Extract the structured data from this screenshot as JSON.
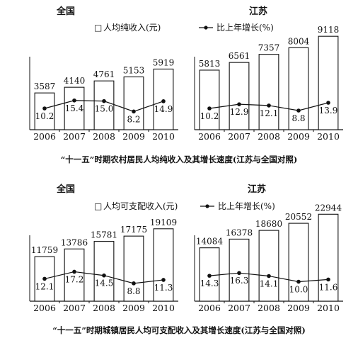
{
  "panels": [
    {
      "region": "全国",
      "legend_text": "人均纯收入(元)",
      "legend_prefix": "□",
      "rate_legend_text": "比上年增长(%)",
      "chart_data": {
        "type": "bar",
        "categories": [
          "2006",
          "2007",
          "2008",
          "2009",
          "2010"
        ],
        "series": [
          {
            "name": "人均纯收入(元)",
            "type": "bar",
            "values": [
              3587,
              4140,
              4761,
              5153,
              5919
            ]
          },
          {
            "name": "比上年增长(%)",
            "type": "line",
            "values": [
              10.2,
              15.4,
              15.0,
              8.2,
              14.9
            ]
          }
        ],
        "ylim": [
          0,
          9200
        ],
        "rate_ylim": [
          0,
          30
        ],
        "grid": false
      }
    },
    {
      "region": "江苏",
      "legend_text": "",
      "legend_prefix": "",
      "rate_legend_text": "比上年增长(%)",
      "chart_data": {
        "type": "bar",
        "categories": [
          "2006",
          "2007",
          "2008",
          "2009",
          "2010"
        ],
        "series": [
          {
            "name": "人均纯收入(元)",
            "type": "bar",
            "values": [
              5813,
              6561,
              7357,
              8004,
              9118
            ]
          },
          {
            "name": "比上年增长(%)",
            "type": "line",
            "values": [
              10.2,
              12.9,
              12.1,
              8.8,
              13.9
            ]
          }
        ],
        "ylim": [
          0,
          9200
        ],
        "rate_ylim": [
          0,
          30
        ],
        "grid": false
      }
    },
    {
      "region": "全国",
      "legend_text": "人均可支配收入(元)",
      "legend_prefix": "□",
      "rate_legend_text": "比上年增长(%)",
      "chart_data": {
        "type": "bar",
        "categories": [
          "2006",
          "2007",
          "2008",
          "2009",
          "2010"
        ],
        "series": [
          {
            "name": "人均可支配收入(元)",
            "type": "bar",
            "values": [
              11759,
              13786,
              15781,
              17175,
              19109
            ]
          },
          {
            "name": "比上年增长(%)",
            "type": "line",
            "values": [
              12.1,
              17.2,
              14.5,
              8.8,
              11.3
            ]
          }
        ],
        "ylim": [
          0,
          23000
        ],
        "rate_ylim": [
          0,
          30
        ],
        "grid": false
      }
    },
    {
      "region": "江苏",
      "legend_text": "",
      "legend_prefix": "",
      "rate_legend_text": "比上年增长(%)",
      "chart_data": {
        "type": "bar",
        "categories": [
          "2006",
          "2007",
          "2008",
          "2009",
          "2010"
        ],
        "series": [
          {
            "name": "人均可支配收入(元)",
            "type": "bar",
            "values": [
              14084,
              16378,
              18680,
              20552,
              22944
            ]
          },
          {
            "name": "比上年增长(%)",
            "type": "line",
            "values": [
              14.3,
              16.3,
              14.1,
              10.0,
              11.6
            ]
          }
        ],
        "ylim": [
          0,
          23000
        ],
        "rate_ylim": [
          0,
          30
        ],
        "grid": false
      }
    }
  ],
  "captions": [
    "“十一五”时期农村居民人均纯收入及其增长速度(江苏与全国对照)",
    "“十一五”时期城镇居民人均可支配收入及其增长速度(江苏与全国对照)"
  ]
}
